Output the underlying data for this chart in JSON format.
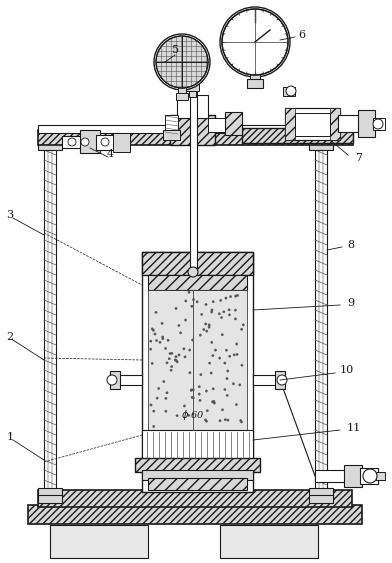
{
  "bg_color": "#ffffff",
  "figsize": [
    3.92,
    5.63
  ],
  "dpi": 100,
  "black": "#1a1a1a",
  "dgray": "#555555",
  "lgray": "#cccccc",
  "mgray": "#999999",
  "hatch_fill": "#d8d8d8",
  "specimen_fill": "#e0e0e0"
}
